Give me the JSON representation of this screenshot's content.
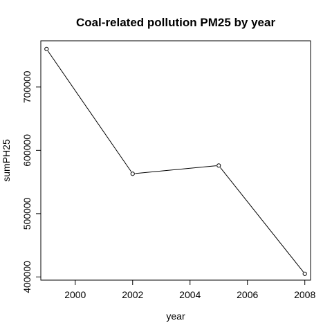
{
  "chart_data": {
    "type": "line",
    "title": "Coal-related pollution PM25 by year",
    "xlabel": "year",
    "ylabel": "sumPH25",
    "x": [
      1999,
      2002,
      2005,
      2008
    ],
    "y": [
      760000,
      563000,
      576000,
      405000
    ],
    "xlim": [
      1998.8,
      2008.2
    ],
    "ylim": [
      395000,
      773000
    ],
    "x_ticks": [
      2000,
      2002,
      2004,
      2006,
      2008
    ],
    "x_tick_labels": [
      "2000",
      "2002",
      "2004",
      "2006",
      "2008"
    ],
    "y_ticks": [
      400000,
      500000,
      600000,
      700000
    ],
    "y_tick_labels": [
      "400000",
      "500000",
      "600000",
      "700000"
    ],
    "grid": false,
    "markers": "open-circle",
    "line_color": "#000000"
  }
}
